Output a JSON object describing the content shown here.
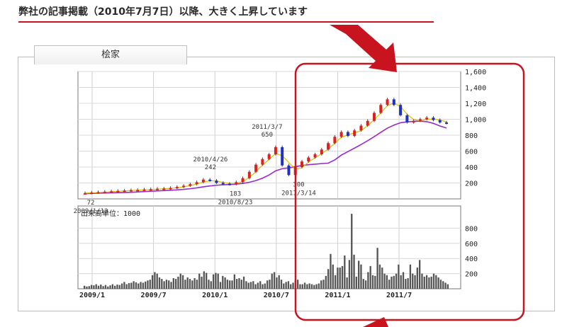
{
  "headline": "弊社の記事掲載（2010年7月7日）以降、大きく上昇しています",
  "tab_label": "桧家",
  "colors": {
    "accent_red": "#c8141e",
    "candle_up": "#e02020",
    "candle_down": "#2030c0",
    "ma_short": "#d8c000",
    "ma_long": "#9a2ad0",
    "volume_bar": "#555555"
  },
  "chart_data": [
    {
      "type": "line",
      "description_series": "price",
      "ylim": [
        0,
        1600
      ],
      "ytick_labels": [
        "1,600",
        "1,400",
        "1,200",
        "1,000",
        "800",
        "600",
        "400",
        "200"
      ],
      "ytick_values": [
        1600,
        1400,
        1200,
        1000,
        800,
        600,
        400,
        200
      ],
      "x_months_from_2009_01": [
        0,
        1,
        2,
        3,
        4,
        5,
        6,
        7,
        8,
        9,
        10,
        11,
        12,
        13,
        14,
        15,
        16,
        17,
        18,
        19,
        20,
        21,
        22,
        23,
        24,
        25,
        26,
        27,
        28,
        29,
        30,
        31,
        32,
        33,
        34,
        35,
        36,
        37,
        38,
        39,
        40,
        41,
        42,
        43,
        44,
        45,
        46,
        47,
        48,
        49,
        50,
        51,
        52,
        53,
        54,
        55
      ],
      "series": [
        {
          "values": [
            72,
            80,
            85,
            90,
            95,
            100,
            105,
            110,
            112,
            118,
            122,
            128,
            130,
            138,
            150,
            165,
            185,
            210,
            242,
            230,
            200,
            190,
            183,
            210,
            260,
            340,
            430,
            500,
            560,
            650,
            420,
            300,
            400,
            470,
            520,
            560,
            620,
            700,
            780,
            840,
            790,
            860,
            920,
            980,
            1080,
            1180,
            1250,
            1180,
            1050,
            960,
            980,
            1000,
            1020,
            990,
            960,
            950
          ]
        }
      ],
      "annotations": [
        {
          "label": "72",
          "date": "2009/1/13"
        },
        {
          "label": "242",
          "date": "2010/4/26"
        },
        {
          "label": "183",
          "date": "2010/8/23"
        },
        {
          "label": "650",
          "date": "2011/3/7"
        },
        {
          "label": "300",
          "date": "2011/3/14"
        }
      ]
    },
    {
      "type": "bar",
      "title": "出来高単位：1000",
      "ylim": [
        0,
        1000
      ],
      "ytick_labels": [
        "800",
        "600",
        "400",
        "200"
      ],
      "ytick_values": [
        800,
        600,
        400,
        200
      ],
      "x_tick_labels": [
        "2009/1",
        "2009/7",
        "2010/1",
        "2010/7",
        "2011/1",
        "2011/7"
      ],
      "values": [
        40,
        30,
        35,
        50,
        45,
        60,
        40,
        55,
        35,
        50,
        30,
        45,
        60,
        40,
        55,
        50,
        70,
        90,
        60,
        75,
        80,
        100,
        85,
        70,
        90,
        80,
        95,
        110,
        120,
        180,
        220,
        200,
        150,
        130,
        100,
        120,
        110,
        90,
        140,
        130,
        160,
        200,
        180,
        120,
        150,
        130,
        110,
        140,
        120,
        200,
        160,
        230,
        210,
        120,
        100,
        190,
        210,
        200,
        90,
        170,
        150,
        120,
        110,
        110,
        190,
        130,
        140,
        120,
        160,
        100,
        80,
        90,
        100,
        60,
        80,
        100,
        60,
        70,
        110,
        120,
        200,
        220,
        150,
        180,
        120,
        70,
        90,
        100,
        60,
        80,
        110,
        120,
        60,
        60,
        80,
        60,
        70,
        60,
        50,
        60,
        70,
        110,
        120,
        170,
        260,
        460,
        320,
        180,
        280,
        280,
        300,
        440,
        150,
        380,
        990,
        450,
        160,
        370,
        320,
        130,
        110,
        220,
        300,
        180,
        170,
        540,
        320,
        280,
        200,
        180,
        120,
        160,
        170,
        200,
        320,
        180,
        220,
        130,
        140,
        320,
        200,
        180,
        280,
        380,
        200,
        160,
        180,
        150,
        160,
        200,
        180,
        150,
        120,
        100,
        80,
        60
      ]
    }
  ]
}
